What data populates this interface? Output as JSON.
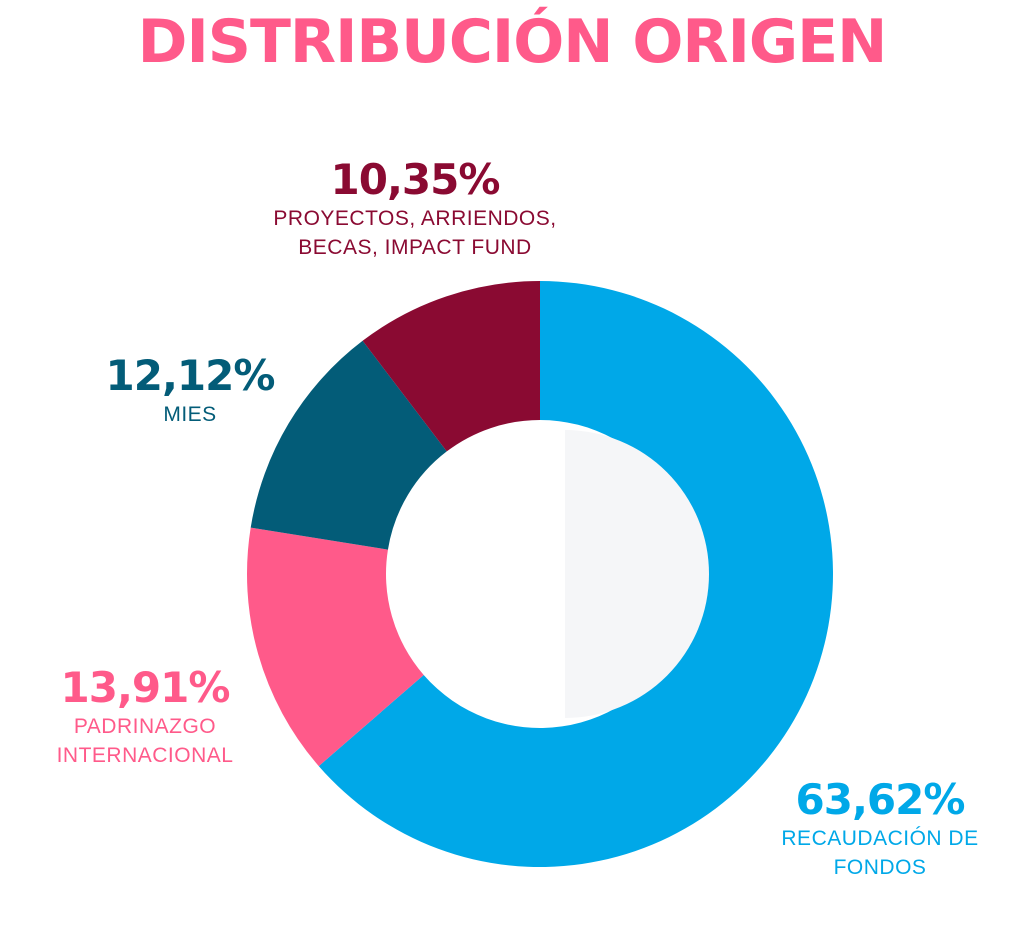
{
  "title": "DISTRIBUCIÓN ORIGEN",
  "colors": {
    "title": "#ff5a8a",
    "hole_highlight": "#f5f6f8"
  },
  "chart_data": {
    "type": "pie",
    "title": "DISTRIBUCIÓN ORIGEN",
    "donut": true,
    "slices": [
      {
        "pct_label": "63,62%",
        "value": 63.62,
        "label_lines": [
          "RECAUDACIÓN DE",
          "FONDOS"
        ],
        "color": "#00a8e8"
      },
      {
        "pct_label": "13,91%",
        "value": 13.91,
        "label_lines": [
          "PADRINAZGO",
          "INTERNACIONAL"
        ],
        "color": "#ff5a8a"
      },
      {
        "pct_label": "12,12%",
        "value": 12.12,
        "label_lines": [
          "MIES"
        ],
        "color": "#035c78"
      },
      {
        "pct_label": "10,35%",
        "value": 10.35,
        "label_lines": [
          "PROYECTOS, ARRIENDOS,",
          "BECAS, IMPACT FUND"
        ],
        "color": "#8a0a32"
      }
    ]
  }
}
